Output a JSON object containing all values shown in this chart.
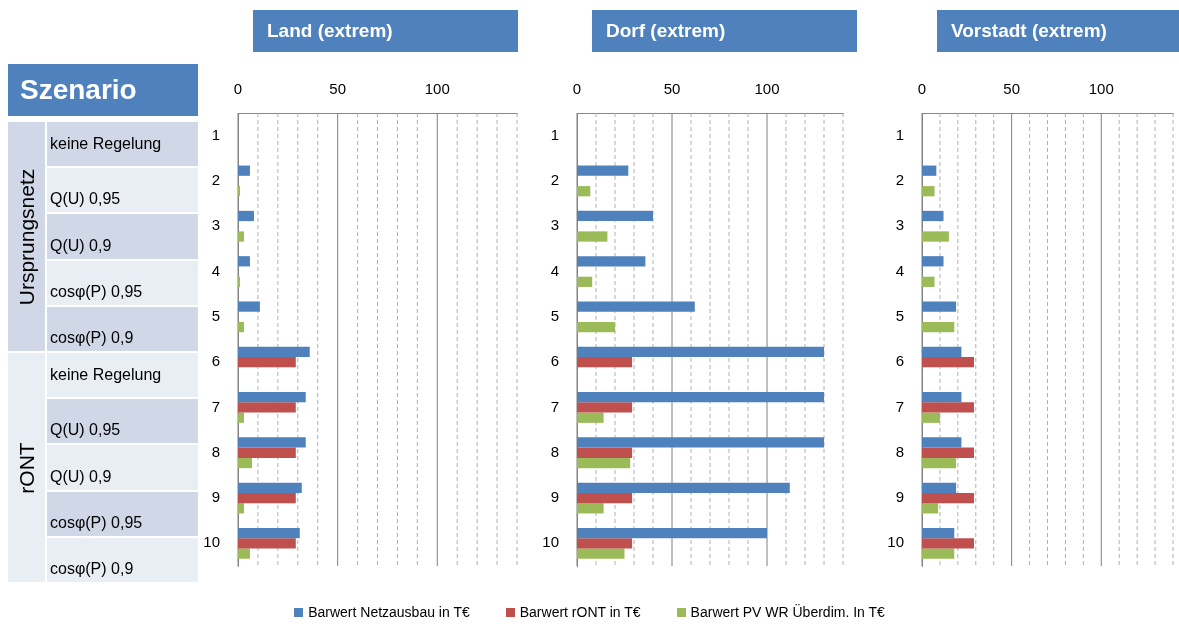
{
  "chart_data": [
    {
      "type": "other",
      "title": "Szenario",
      "annotations": [
        "Ursprungsnetz",
        "rONT"
      ],
      "categories": [
        "keine Regelung",
        "Q(U) 0,95",
        "Q(U) 0,9",
        "cosφ(P) 0,95",
        "cosφ(P) 0,9",
        "keine Regelung",
        "Q(U) 0,95",
        "Q(U) 0,9",
        "cosφ(P) 0,95",
        "cosφ(P) 0,9"
      ]
    },
    {
      "type": "bar",
      "orientation": "horizontal",
      "title": "Land (extrem)",
      "categories": [
        "1",
        "2",
        "3",
        "4",
        "5",
        "6",
        "7",
        "8",
        "9",
        "10"
      ],
      "xlim": [
        0,
        140
      ],
      "xticks": [
        0,
        {
          "value": 10,
          "label": null
        },
        {
          "value": 20,
          "label": null
        },
        {
          "value": 30,
          "label": null
        },
        {
          "value": 40,
          "label": null
        },
        50,
        {
          "value": 60,
          "label": null
        },
        {
          "value": 70,
          "label": null
        },
        {
          "value": 80,
          "label": null
        },
        {
          "value": 90,
          "label": null
        },
        100,
        {
          "value": 110,
          "label": null
        },
        {
          "value": 120,
          "label": null
        },
        {
          "value": 130,
          "label": null
        },
        {
          "value": 140,
          "label": null
        }
      ],
      "grid": "x",
      "series": [
        {
          "color": "#4f81bd",
          "values": [
            null,
            6,
            8,
            6,
            11,
            36,
            34,
            34,
            32,
            31
          ]
        },
        {
          "color": "#c0504d",
          "values": [
            null,
            null,
            null,
            null,
            null,
            29,
            29,
            29,
            29,
            29
          ]
        },
        {
          "color": "#9bbb59",
          "values": [
            null,
            1,
            3,
            1,
            3,
            null,
            3,
            7,
            3,
            6
          ]
        }
      ]
    },
    {
      "type": "bar",
      "orientation": "horizontal",
      "title": "Dorf (extrem)",
      "categories": [
        "1",
        "2",
        "3",
        "4",
        "5",
        "6",
        "7",
        "8",
        "9",
        "10"
      ],
      "xlim": [
        0,
        140
      ],
      "xticks": [
        0,
        {
          "value": 10,
          "label": null
        },
        {
          "value": 20,
          "label": null
        },
        {
          "value": 30,
          "label": null
        },
        {
          "value": 40,
          "label": null
        },
        50,
        {
          "value": 60,
          "label": null
        },
        {
          "value": 70,
          "label": null
        },
        {
          "value": 80,
          "label": null
        },
        {
          "value": 90,
          "label": null
        },
        100,
        {
          "value": 110,
          "label": null
        },
        {
          "value": 120,
          "label": null
        },
        {
          "value": 130,
          "label": null
        },
        {
          "value": 140,
          "label": null
        }
      ],
      "grid": "x",
      "legend": "bottom",
      "series": [
        {
          "name": "Barwert Netzausbau in T€",
          "color": "#4f81bd",
          "values": [
            null,
            27,
            40,
            36,
            62,
            130,
            130,
            130,
            112,
            100
          ]
        },
        {
          "name": "Barwert rONT in T€",
          "color": "#c0504d",
          "values": [
            null,
            null,
            null,
            null,
            null,
            29,
            29,
            29,
            29,
            29
          ]
        },
        {
          "name": "Barwert PV WR Überdim. In T€",
          "color": "#9bbb59",
          "values": [
            null,
            7,
            16,
            8,
            20,
            null,
            14,
            28,
            14,
            25
          ]
        }
      ]
    },
    {
      "type": "bar",
      "orientation": "horizontal",
      "title": "Vorstadt (extrem)",
      "categories": [
        "1",
        "2",
        "3",
        "4",
        "5",
        "6",
        "7",
        "8",
        "9",
        "10"
      ],
      "xlim": [
        0,
        140
      ],
      "xticks": [
        0,
        {
          "value": 10,
          "label": null
        },
        {
          "value": 20,
          "label": null
        },
        {
          "value": 30,
          "label": null
        },
        {
          "value": 40,
          "label": null
        },
        50,
        {
          "value": 60,
          "label": null
        },
        {
          "value": 70,
          "label": null
        },
        {
          "value": 80,
          "label": null
        },
        {
          "value": 90,
          "label": null
        },
        100,
        {
          "value": 110,
          "label": null
        },
        {
          "value": 120,
          "label": null
        },
        {
          "value": 130,
          "label": null
        },
        {
          "value": 140,
          "label": null
        }
      ],
      "grid": "x",
      "series": [
        {
          "color": "#4f81bd",
          "values": [
            null,
            8,
            12,
            12,
            19,
            22,
            22,
            22,
            19,
            18
          ]
        },
        {
          "color": "#c0504d",
          "values": [
            null,
            null,
            null,
            null,
            null,
            29,
            29,
            29,
            29,
            29
          ]
        },
        {
          "color": "#9bbb59",
          "values": [
            null,
            7,
            15,
            7,
            18,
            null,
            10,
            19,
            9,
            18
          ]
        }
      ]
    }
  ]
}
